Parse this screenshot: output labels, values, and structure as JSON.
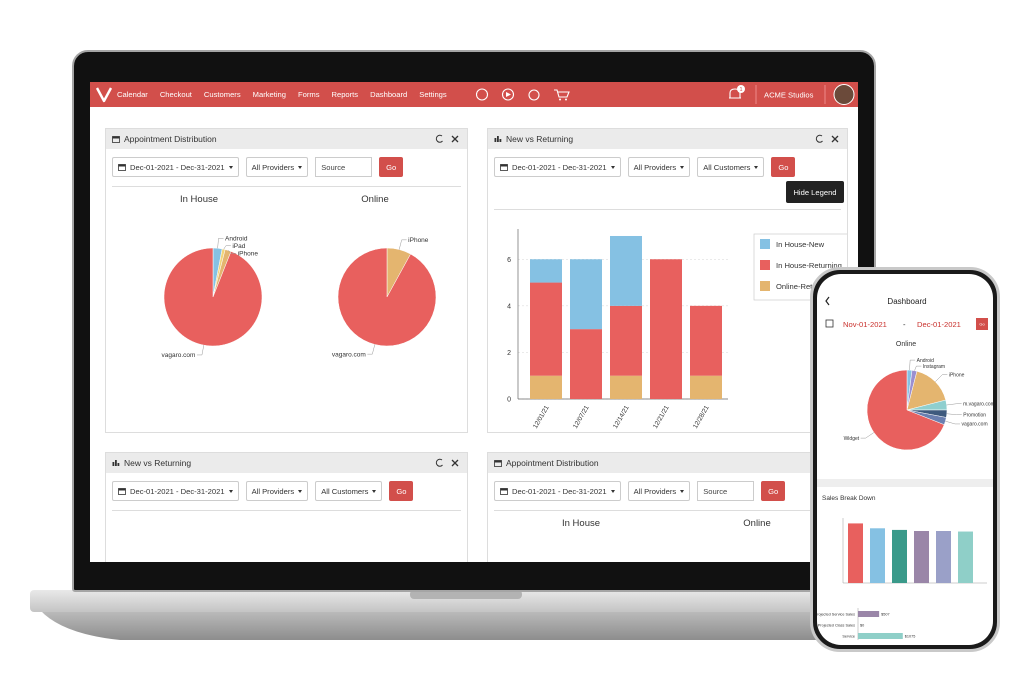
{
  "nav": {
    "items": [
      "Calendar",
      "Checkout",
      "Customers",
      "Marketing",
      "Forms",
      "Reports",
      "Dashboard",
      "Settings"
    ],
    "notifications": 1,
    "business": "ACME Studios"
  },
  "panels": [
    {
      "title": "Appointment Distribution",
      "date_range": "Dec-01-2021 - Dec-31-2021",
      "filters": [
        "All Providers"
      ],
      "search_field": "Source",
      "button": "Go",
      "charts": [
        {
          "type": "pie",
          "title": "In House",
          "categories": [
            "Android",
            "iPad",
            "iPhone",
            "vagaro.com"
          ],
          "values": [
            3,
            1,
            2,
            94
          ],
          "colors": [
            "#85c1e3",
            "#f2d479",
            "#e4b56f",
            "#e8605e"
          ]
        },
        {
          "type": "pie",
          "title": "Online",
          "categories": [
            "iPhone",
            "vagaro.com"
          ],
          "values": [
            8,
            92
          ],
          "colors": [
            "#e4b56f",
            "#e8605e"
          ]
        }
      ]
    },
    {
      "title": "New vs Returning",
      "date_range": "Dec-01-2021 - Dec-31-2021",
      "filters": [
        "All Providers",
        "All Customers"
      ],
      "button": "Go",
      "tooltip": "Hide Legend",
      "charts": [
        {
          "type": "bar",
          "categories": [
            "12/01/21",
            "12/07/21",
            "12/14/21",
            "12/21/21",
            "12/28/21"
          ],
          "series": [
            {
              "name": "In House-New",
              "color": "#85c1e3",
              "values": [
                1,
                3,
                3,
                0,
                0
              ]
            },
            {
              "name": "In House-Returning",
              "color": "#e8605e",
              "values": [
                4,
                3,
                3,
                6,
                3
              ]
            },
            {
              "name": "Online-Returning",
              "color": "#e4b56f",
              "values": [
                1,
                0,
                1,
                0,
                1
              ]
            }
          ],
          "ylim": [
            0,
            7.3
          ],
          "yticks": [
            0,
            2,
            4,
            6
          ],
          "grid": true
        }
      ]
    },
    {
      "title": "New vs Returning",
      "date_range": "Dec-01-2021 - Dec-31-2021",
      "filters": [
        "All Providers",
        "All Customers"
      ],
      "button": "Go"
    },
    {
      "title": "Appointment Distribution",
      "date_range": "Dec-01-2021 - Dec-31-2021",
      "filters": [
        "All Providers"
      ],
      "search_field": "Source",
      "button": "Go",
      "headings": [
        "In House",
        "Online"
      ]
    }
  ],
  "phone": {
    "title": "Dashboard",
    "start_date": "Nov-01-2021",
    "separator": "-",
    "end_date": "Dec-01-2021",
    "button": "Go",
    "pie": {
      "type": "pie",
      "title": "Online",
      "categories": [
        "Android",
        "Instagram",
        "iPhone",
        "m.vagaro.com",
        "Promotion",
        "vagaro.com",
        "Widget"
      ],
      "values": [
        2,
        2,
        17,
        4,
        3,
        3,
        69
      ],
      "colors": [
        "#85c1e3",
        "#9b8fd0",
        "#e4b56f",
        "#8fcfcf",
        "#3e5a7e",
        "#6a7fb0",
        "#e8605e"
      ]
    },
    "sales": {
      "type": "bar",
      "title": "Sales Break Down",
      "values": [
        110,
        101,
        98,
        96,
        96,
        95
      ],
      "colors": [
        "#e8605e",
        "#85c1e3",
        "#3a9a8a",
        "#9a86a8",
        "#9aa0c8",
        "#8fcfc8"
      ],
      "ylim": [
        0,
        120
      ]
    },
    "projections": {
      "type": "hbar",
      "categories": [
        "Projected Service Sales",
        "Projected Class Sales",
        "Service"
      ],
      "values": [
        507,
        0,
        1075
      ],
      "value_labels": [
        "$507",
        "$0",
        "$1075"
      ],
      "colors": [
        "#9a86a8",
        "#9aa0c8",
        "#8fcfc8"
      ],
      "xlim": [
        0,
        1200
      ]
    }
  }
}
